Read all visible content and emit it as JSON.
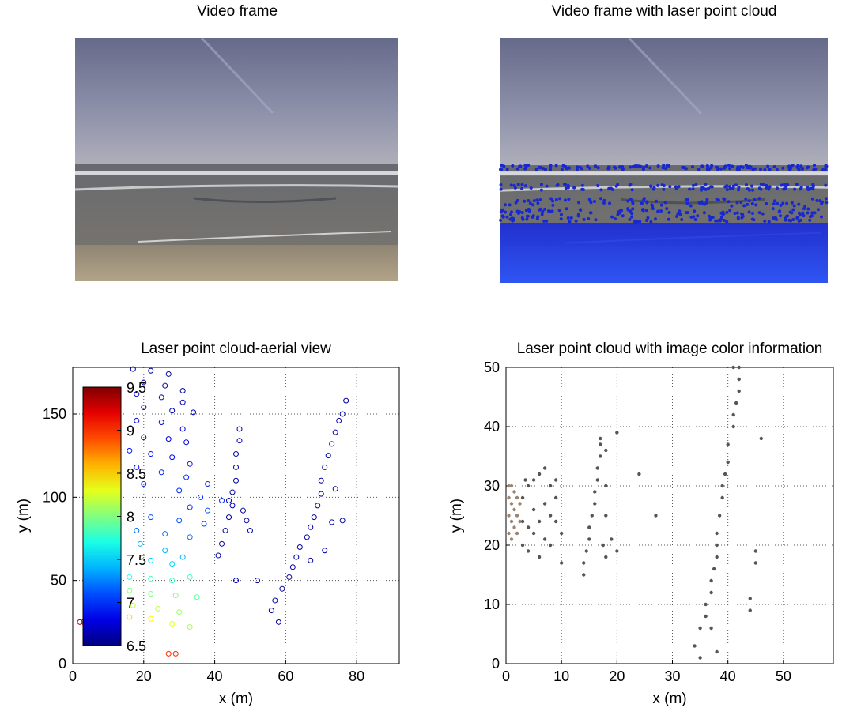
{
  "panels": [
    {
      "title": "Video frame"
    },
    {
      "title": "Video frame with laser point cloud"
    }
  ],
  "chart_data": [
    {
      "type": "scatter",
      "title": "Laser point cloud-aerial view",
      "x_label": "x (m)",
      "y_label": "y (m)",
      "xlim": [
        0,
        92
      ],
      "ylim": [
        0,
        178
      ],
      "xticks": [
        0,
        20,
        40,
        60,
        80
      ],
      "yticks": [
        0,
        50,
        100,
        150
      ],
      "grid": true,
      "colormap": "jet",
      "clim": [
        6.5,
        9.5
      ],
      "colorbar_ticks": [
        6.5,
        7,
        7.5,
        8,
        8.5,
        9,
        9.5
      ],
      "x": [
        17,
        22,
        27,
        20,
        26,
        31,
        18,
        25,
        31,
        20,
        28,
        34,
        18,
        25,
        31,
        20,
        27,
        32,
        16,
        22,
        28,
        33,
        18,
        25,
        32,
        38,
        20,
        30,
        36,
        42,
        33,
        38,
        22,
        30,
        37,
        18,
        26,
        33,
        19,
        26,
        31,
        22,
        28,
        16,
        22,
        28,
        33,
        16,
        22,
        29,
        35,
        17,
        24,
        30,
        16,
        22,
        28,
        33,
        2,
        3,
        27,
        29,
        41,
        42,
        43,
        44,
        45,
        45,
        46,
        46,
        46,
        47,
        47,
        44,
        48,
        49,
        50,
        46,
        58,
        56,
        57,
        59,
        61,
        62,
        63,
        64,
        66,
        67,
        68,
        69,
        70,
        70,
        71,
        72,
        73,
        74,
        75,
        76,
        77,
        71,
        73,
        76,
        74,
        67,
        52
      ],
      "y": [
        177,
        176,
        174,
        169,
        167,
        164,
        162,
        160,
        157,
        154,
        152,
        151,
        146,
        145,
        141,
        136,
        135,
        133,
        128,
        126,
        124,
        120,
        118,
        115,
        112,
        108,
        108,
        104,
        100,
        98,
        94,
        92,
        88,
        86,
        84,
        80,
        78,
        76,
        72,
        68,
        64,
        62,
        60,
        52,
        51,
        50,
        52,
        44,
        42,
        41,
        40,
        35,
        33,
        31,
        28,
        27,
        24,
        22,
        25,
        25,
        6,
        6,
        65,
        72,
        80,
        88,
        95,
        103,
        110,
        118,
        126,
        134,
        141,
        98,
        92,
        86,
        80,
        50,
        25,
        32,
        38,
        45,
        52,
        58,
        64,
        70,
        76,
        82,
        88,
        95,
        102,
        110,
        118,
        125,
        132,
        139,
        146,
        150,
        158,
        68,
        85,
        86,
        105,
        62,
        50
      ],
      "c": [
        6.6,
        6.6,
        6.6,
        6.6,
        6.6,
        6.6,
        6.7,
        6.7,
        6.7,
        6.7,
        6.7,
        6.7,
        6.8,
        6.8,
        6.8,
        6.8,
        6.8,
        6.8,
        6.9,
        6.9,
        6.9,
        6.9,
        6.9,
        7.0,
        7.0,
        7.0,
        7.0,
        7.0,
        7.0,
        7.0,
        7.0,
        7.1,
        7.1,
        7.1,
        7.1,
        7.2,
        7.2,
        7.2,
        7.4,
        7.4,
        7.4,
        7.5,
        7.5,
        7.7,
        7.8,
        7.8,
        7.8,
        8.0,
        8.0,
        8.0,
        7.9,
        8.2,
        8.2,
        8.1,
        8.5,
        8.4,
        8.3,
        8.1,
        9.4,
        9.4,
        9.0,
        9.0,
        6.6,
        6.6,
        6.6,
        6.6,
        6.6,
        6.6,
        6.6,
        6.6,
        6.6,
        6.6,
        6.6,
        6.6,
        6.6,
        6.6,
        6.6,
        6.7,
        6.6,
        6.6,
        6.6,
        6.6,
        6.6,
        6.6,
        6.6,
        6.6,
        6.6,
        6.6,
        6.6,
        6.6,
        6.6,
        6.6,
        6.6,
        6.6,
        6.6,
        6.6,
        6.6,
        6.6,
        6.6,
        6.6,
        6.6,
        6.6,
        6.6,
        6.6,
        6.6
      ]
    },
    {
      "type": "scatter",
      "title": "Laser point cloud with image color information",
      "x_label": "x (m)",
      "y_label": "y (m)",
      "xlim": [
        0,
        59
      ],
      "ylim": [
        0,
        50
      ],
      "xticks": [
        0,
        10,
        20,
        30,
        40,
        50
      ],
      "yticks": [
        0,
        10,
        20,
        30,
        40,
        50
      ],
      "grid": true,
      "series": [
        {
          "color": "#9c8470",
          "x": [
            0.5,
            0.5,
            0.5,
            1,
            1,
            1,
            1.5,
            1.5,
            1.5,
            2,
            2,
            2,
            2.5,
            2.5,
            0.5,
            1
          ],
          "y": [
            22,
            25,
            28,
            21,
            24,
            27,
            23,
            26,
            29,
            22,
            25,
            28,
            24,
            27,
            30,
            30
          ]
        },
        {
          "color": "#555555",
          "x": [
            3,
            3,
            3,
            3.5,
            4,
            4,
            4,
            5,
            5,
            5,
            6,
            6,
            6,
            7,
            7,
            7,
            8,
            8,
            8,
            9,
            9,
            10,
            9,
            10,
            14,
            14,
            14.5,
            15,
            15,
            15.5,
            16,
            16,
            16.5,
            16.5,
            17,
            17,
            17,
            18,
            18,
            18,
            17.5,
            18,
            20,
            19,
            24,
            27,
            20,
            34,
            35,
            35,
            36,
            36,
            37,
            37,
            37.5,
            38,
            38,
            38,
            38.5,
            39,
            39,
            39.5,
            40,
            40,
            41,
            41,
            41.5,
            42,
            42,
            41,
            42,
            38,
            44,
            44,
            45,
            45,
            46,
            37
          ],
          "y": [
            20,
            24,
            28,
            31,
            19,
            23,
            30,
            22,
            26,
            31,
            18,
            24,
            32,
            21,
            27,
            33,
            20,
            25,
            30,
            24,
            28,
            17,
            31,
            22,
            15,
            17,
            19,
            21,
            23,
            25,
            27,
            29,
            31,
            33,
            35,
            37,
            38,
            36,
            30,
            25,
            20,
            18,
            39,
            21,
            32,
            25,
            19,
            3,
            1,
            6,
            8,
            10,
            12,
            14,
            16,
            18,
            20,
            22,
            25,
            28,
            30,
            32,
            34,
            37,
            40,
            42,
            44,
            46,
            48,
            50,
            50,
            2,
            9,
            11,
            17,
            19,
            38,
            6
          ]
        }
      ]
    }
  ]
}
